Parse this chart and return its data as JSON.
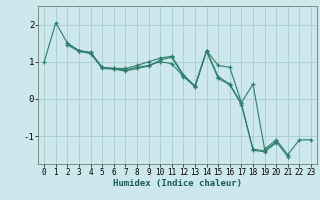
{
  "title": "",
  "xlabel": "Humidex (Indice chaleur)",
  "ylabel": "",
  "bg_color": "#cce8ec",
  "grid_color": "#aacccc",
  "line_color": "#2e7d6e",
  "xlim": [
    -0.5,
    23.5
  ],
  "ylim": [
    -1.75,
    2.5
  ],
  "yticks": [
    -1,
    0,
    1,
    2
  ],
  "xticks": [
    0,
    1,
    2,
    3,
    4,
    5,
    6,
    7,
    8,
    9,
    10,
    11,
    12,
    13,
    14,
    15,
    16,
    17,
    18,
    19,
    20,
    21,
    22,
    23
  ],
  "lines": [
    {
      "x": [
        0,
        1,
        2,
        3,
        4,
        5,
        6,
        7,
        8,
        9,
        10,
        11,
        12,
        13,
        14,
        15,
        16,
        17,
        18,
        19,
        20,
        21,
        22,
        23
      ],
      "y": [
        1.0,
        2.05,
        1.5,
        1.3,
        1.25,
        0.85,
        0.82,
        0.78,
        0.85,
        0.9,
        1.0,
        0.95,
        0.6,
        0.35,
        1.3,
        0.9,
        0.85,
        -0.1,
        0.4,
        -1.35,
        -1.1,
        -1.5,
        -1.1,
        -1.1
      ]
    },
    {
      "x": [
        2,
        3,
        4,
        5,
        6,
        7,
        8,
        9,
        10,
        11,
        12,
        13,
        14,
        15,
        16,
        17,
        18,
        19,
        20,
        21
      ],
      "y": [
        1.5,
        1.3,
        1.25,
        0.85,
        0.82,
        0.82,
        0.9,
        1.0,
        1.1,
        1.15,
        0.65,
        0.35,
        1.3,
        0.6,
        0.4,
        -0.12,
        -1.35,
        -1.4,
        -1.15,
        -1.55
      ]
    },
    {
      "x": [
        2,
        3,
        4,
        5,
        6,
        7,
        8,
        9,
        10,
        11,
        12,
        13,
        14,
        15,
        16,
        17,
        18,
        19,
        20
      ],
      "y": [
        1.45,
        1.28,
        1.22,
        0.82,
        0.8,
        0.75,
        0.82,
        0.88,
        1.05,
        1.12,
        0.62,
        0.32,
        1.28,
        0.55,
        0.38,
        -0.15,
        -1.38,
        -1.42,
        -1.18
      ]
    }
  ]
}
